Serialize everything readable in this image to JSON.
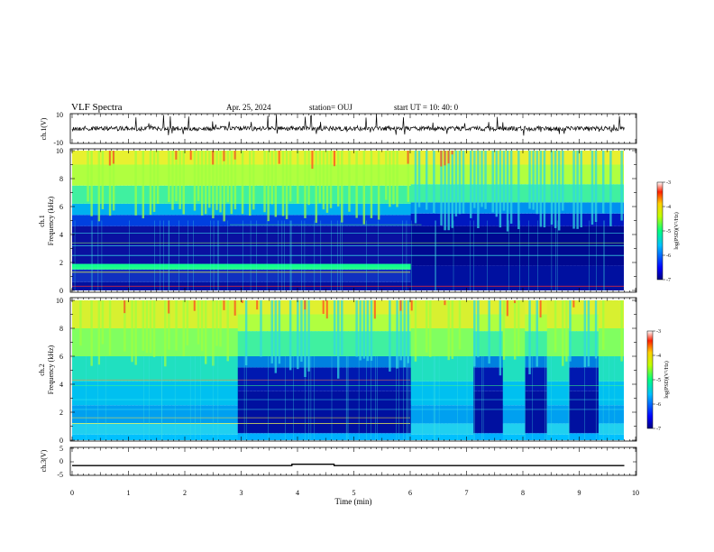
{
  "header": {
    "title": "VLF Spectra",
    "date": "Apr. 25, 2024",
    "station": "station= OUJ",
    "start": "start  UT =   10: 40: 0"
  },
  "chart_data": [
    {
      "type": "line",
      "panel": "ch1-waveform",
      "ylabel": "ch.1(V)",
      "ytick_labels": [
        "10",
        "-10"
      ],
      "ylim": [
        -10,
        10
      ],
      "note_series": "noisy baseline near 0 V with sporadic spikes",
      "baseline": 0
    },
    {
      "type": "heatmap",
      "panel": "ch1-spectrogram",
      "ylabel": "ch.1\nFrequency (kHz)",
      "ylim": [
        0,
        10
      ],
      "ytick_labels": [
        "0",
        "2",
        "4",
        "6",
        "8",
        "10"
      ],
      "xlim": [
        0,
        10
      ],
      "colorbar": {
        "label": "log(PSD)(V²/Hz)",
        "range": [
          -7,
          -3
        ],
        "ticks": [
          "-3",
          "-4",
          "-5",
          "-6",
          "-7"
        ]
      },
      "regime_change_min": 6.0
    },
    {
      "type": "heatmap",
      "panel": "ch2-spectrogram",
      "ylabel": "ch.2\nFrequency (kHz)",
      "ylim": [
        0,
        10
      ],
      "ytick_labels": [
        "0",
        "2",
        "4",
        "6",
        "8",
        "10"
      ],
      "xlim": [
        0,
        10
      ],
      "colorbar": {
        "label": "log(PSD)(V²/Hz)",
        "range": [
          -7,
          -3
        ],
        "ticks": [
          "-3",
          "-4",
          "-5",
          "-6",
          "-7"
        ]
      },
      "quiet_intervals_min": [
        [
          2.9,
          6.0
        ],
        [
          7.1,
          7.6
        ],
        [
          8.0,
          8.4
        ],
        [
          8.8,
          9.3
        ]
      ]
    },
    {
      "type": "line",
      "panel": "ch3-level",
      "ylabel": "ch.3(V)",
      "ytick_labels": [
        "5",
        "0",
        "-5"
      ],
      "ylim": [
        -5,
        5
      ],
      "x": [
        0,
        3.9,
        3.9,
        4.65,
        4.65,
        9.8
      ],
      "y": [
        -1.4,
        -1.4,
        -0.9,
        -0.9,
        -1.4,
        -1.4
      ]
    }
  ],
  "xaxis": {
    "label": "Time (min)",
    "tick_labels": [
      "0",
      "1",
      "2",
      "3",
      "4",
      "5",
      "6",
      "7",
      "8",
      "9",
      "10"
    ],
    "xlim": [
      0,
      10
    ],
    "data_end": 9.8
  }
}
